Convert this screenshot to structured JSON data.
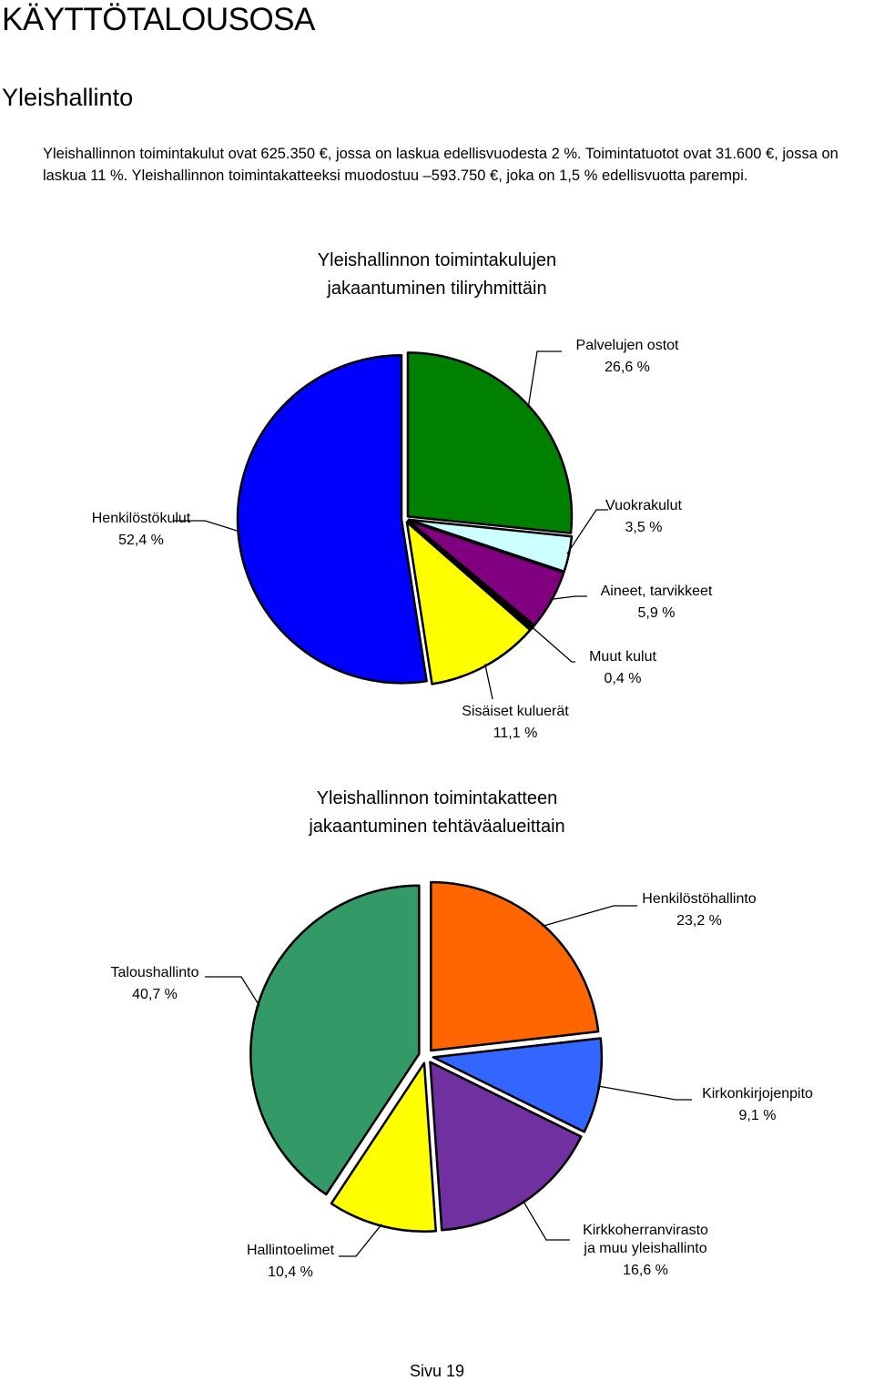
{
  "page": {
    "heading": "KÄYTTÖTALOUSOSA",
    "subheading": "Yleishallinto",
    "intro": "Yleishallinnon toimintakulut ovat 625.350 €, jossa on laskua edellisvuodesta 2 %. Toimintatuotot ovat 31.600 €, jossa on laskua 11 %. Yleishallinnon toimintakatteeksi muodostuu –593.750 €, joka on 1,5 % edellisvuotta parempi.",
    "footer": "Sivu 19"
  },
  "chart_data": [
    {
      "type": "pie",
      "title": [
        "Yleishallinnon toimintakulujen",
        "jakaantuminen tiliryhmittäin"
      ],
      "slices": [
        {
          "label": "Palvelujen ostot",
          "value": 26.6,
          "value_label": "26,6 %",
          "color": "#008000"
        },
        {
          "label": "Vuokrakulut",
          "value": 3.5,
          "value_label": "3,5 %",
          "color": "#ccffff"
        },
        {
          "label": "Aineet, tarvikkeet",
          "value": 5.9,
          "value_label": "5,9 %",
          "color": "#800080"
        },
        {
          "label": "Muut kulut",
          "value": 0.4,
          "value_label": "0,4 %",
          "color": "#000000"
        },
        {
          "label": "Sisäiset kuluerät",
          "value": 11.1,
          "value_label": "11,1 %",
          "color": "#ffff00"
        },
        {
          "label": "Henkilöstökulut",
          "value": 52.4,
          "value_label": "52,4 %",
          "color": "#0000ff"
        }
      ]
    },
    {
      "type": "pie",
      "title": [
        "Yleishallinnon toimintakatteen",
        "jakaantuminen tehtäväalueittain"
      ],
      "slices": [
        {
          "label": "Henkilöstöhallinto",
          "value": 23.2,
          "value_label": "23,2 %",
          "color": "#ff6600"
        },
        {
          "label": "Kirkonkirjojenpito",
          "value": 9.1,
          "value_label": "9,1 %",
          "color": "#3366ff"
        },
        {
          "label": "Kirkkoherranvirasto ja muu yleishallinto",
          "value": 16.6,
          "value_label": "16,6 %",
          "color": "#7030a0"
        },
        {
          "label": "Hallintoelimet",
          "value": 10.4,
          "value_label": "10,4 %",
          "color": "#ffff00"
        },
        {
          "label": "Taloushallinto",
          "value": 40.7,
          "value_label": "40,7 %",
          "color": "#339966"
        }
      ]
    }
  ]
}
